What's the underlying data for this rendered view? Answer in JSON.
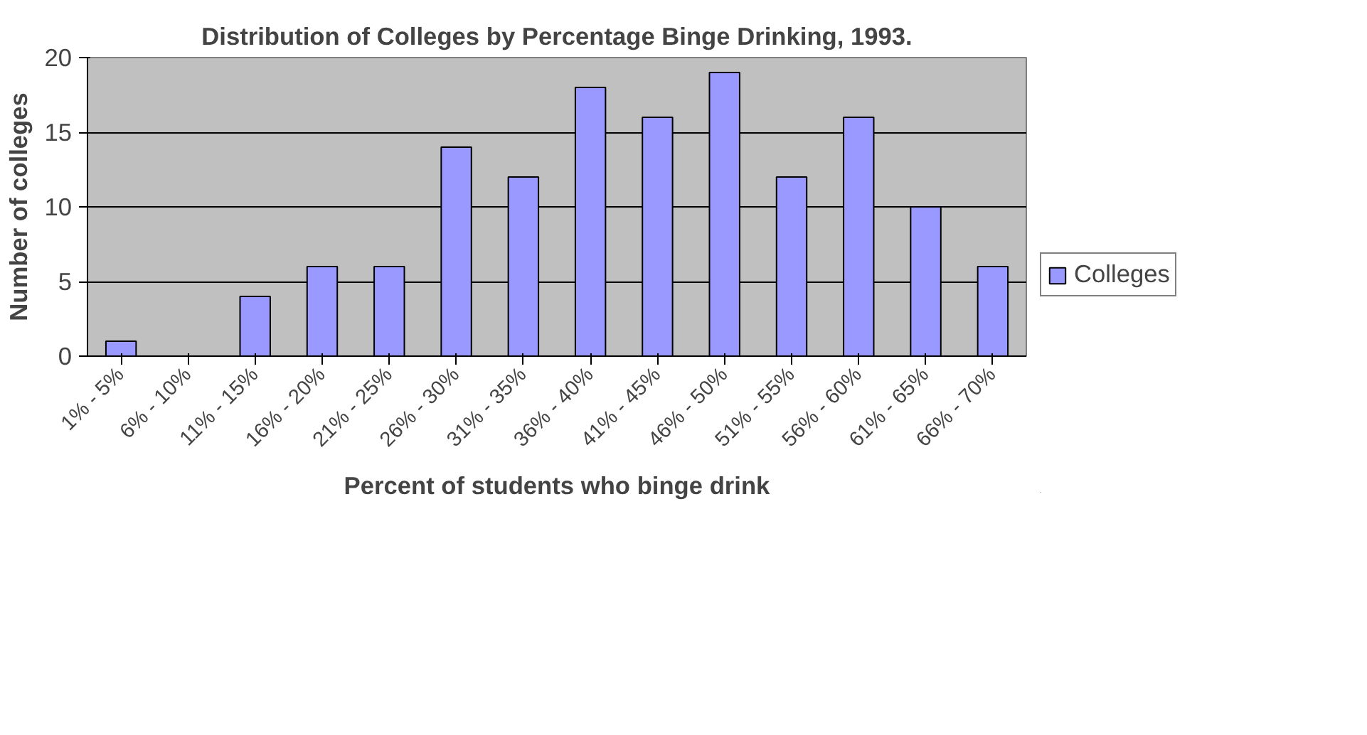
{
  "chart_data": {
    "type": "bar",
    "title": "Distribution of Colleges by Percentage Binge Drinking, 1993.",
    "xlabel": "Percent of students who binge drink",
    "ylabel": "Number of colleges",
    "categories": [
      "1% - 5%",
      "6% - 10%",
      "11% - 15%",
      "16% - 20%",
      "21% - 25%",
      "26% - 30%",
      "31% - 35%",
      "36% - 40%",
      "41% - 45%",
      "46% - 50%",
      "51% - 55%",
      "56% - 60%",
      "61% - 65%",
      "66% - 70%"
    ],
    "series": [
      {
        "name": "Colleges",
        "color": "#9999ff",
        "values": [
          1,
          0,
          4,
          6,
          6,
          14,
          12,
          18,
          16,
          19,
          12,
          16,
          10,
          6
        ]
      }
    ],
    "ylim": [
      0,
      20
    ],
    "yticks": [
      0,
      5,
      10,
      15,
      20
    ],
    "grid": "y",
    "legend": "right"
  }
}
